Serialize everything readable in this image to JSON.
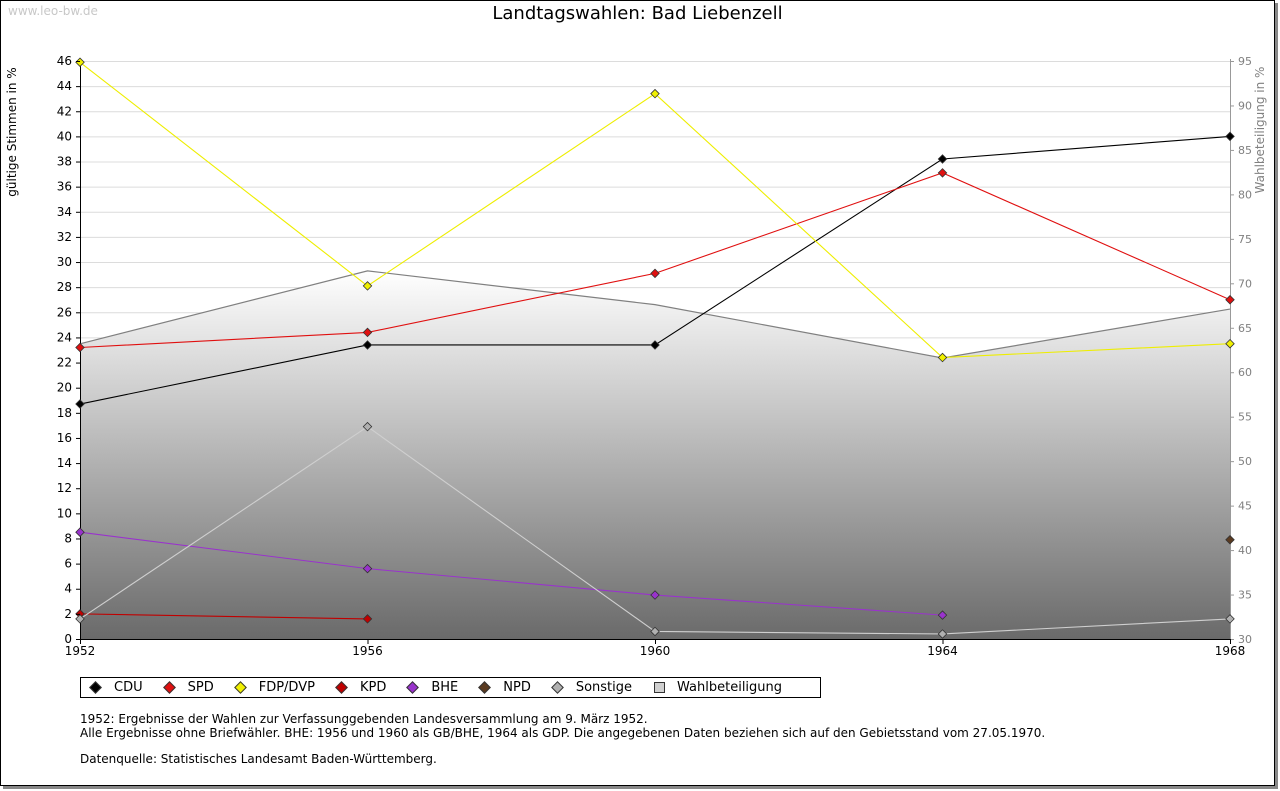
{
  "watermark": "www.leo-bw.de",
  "chart_data": {
    "type": "line",
    "title": "Landtagswahlen: Bad Liebenzell",
    "xlabel": "",
    "ylabel": "gültige Stimmen in %",
    "y2label": "Wahlbeteiligung in %",
    "x": [
      1952,
      1956,
      1960,
      1964,
      1968
    ],
    "ylim": [
      0,
      46
    ],
    "y2lim": [
      30,
      95
    ],
    "yticks": [
      0,
      2,
      4,
      6,
      8,
      10,
      12,
      14,
      16,
      18,
      20,
      22,
      24,
      26,
      28,
      30,
      32,
      34,
      36,
      38,
      40,
      42,
      44,
      46
    ],
    "y2ticks": [
      30,
      35,
      40,
      45,
      50,
      55,
      60,
      65,
      70,
      75,
      80,
      85,
      90,
      95
    ],
    "grid": true,
    "series": [
      {
        "name": "CDU",
        "color": "#000000",
        "values": [
          18.7,
          23.4,
          23.4,
          38.2,
          40.0
        ]
      },
      {
        "name": "SPD",
        "color": "#e01010",
        "values": [
          23.2,
          24.4,
          29.1,
          37.1,
          27.0
        ]
      },
      {
        "name": "FDP/DVP",
        "color": "#f0f000",
        "values": [
          45.9,
          28.1,
          43.4,
          22.4,
          23.5
        ]
      },
      {
        "name": "KPD",
        "color": "#c00000",
        "values": [
          2.0,
          1.6,
          null,
          null,
          null
        ]
      },
      {
        "name": "BHE",
        "color": "#9933cc",
        "values": [
          8.5,
          5.6,
          3.5,
          1.9,
          null
        ]
      },
      {
        "name": "NPD",
        "color": "#5a3a20",
        "values": [
          null,
          null,
          null,
          null,
          7.9
        ]
      },
      {
        "name": "Sonstige",
        "color": "#b0b0b0",
        "values": [
          1.6,
          16.9,
          0.6,
          0.4,
          1.6
        ]
      }
    ],
    "turnout": {
      "name": "Wahlbeteiligung",
      "color": "#808080",
      "values": [
        63.2,
        71.4,
        67.6,
        61.6,
        67.1
      ]
    }
  },
  "legend": [
    {
      "label": "CDU",
      "color": "#000000"
    },
    {
      "label": "SPD",
      "color": "#e01010"
    },
    {
      "label": "FDP/DVP",
      "color": "#f0f000"
    },
    {
      "label": "KPD",
      "color": "#c00000"
    },
    {
      "label": "BHE",
      "color": "#9933cc"
    },
    {
      "label": "NPD",
      "color": "#5a3a20"
    },
    {
      "label": "Sonstige",
      "color": "#b0b0b0"
    },
    {
      "label": "Wahlbeteiligung",
      "color": "#d0d0d0"
    }
  ],
  "notes": {
    "line1": "1952: Ergebnisse der Wahlen zur Verfassunggebenden Landesversammlung am 9. März 1952.",
    "line2": "Alle Ergebnisse ohne Briefwähler. BHE: 1956 und 1960 als GB/BHE, 1964 als GDP. Die angegebenen Daten beziehen sich auf den Gebietsstand vom 27.05.1970.",
    "source": "Datenquelle: Statistisches Landesamt Baden-Württemberg."
  }
}
